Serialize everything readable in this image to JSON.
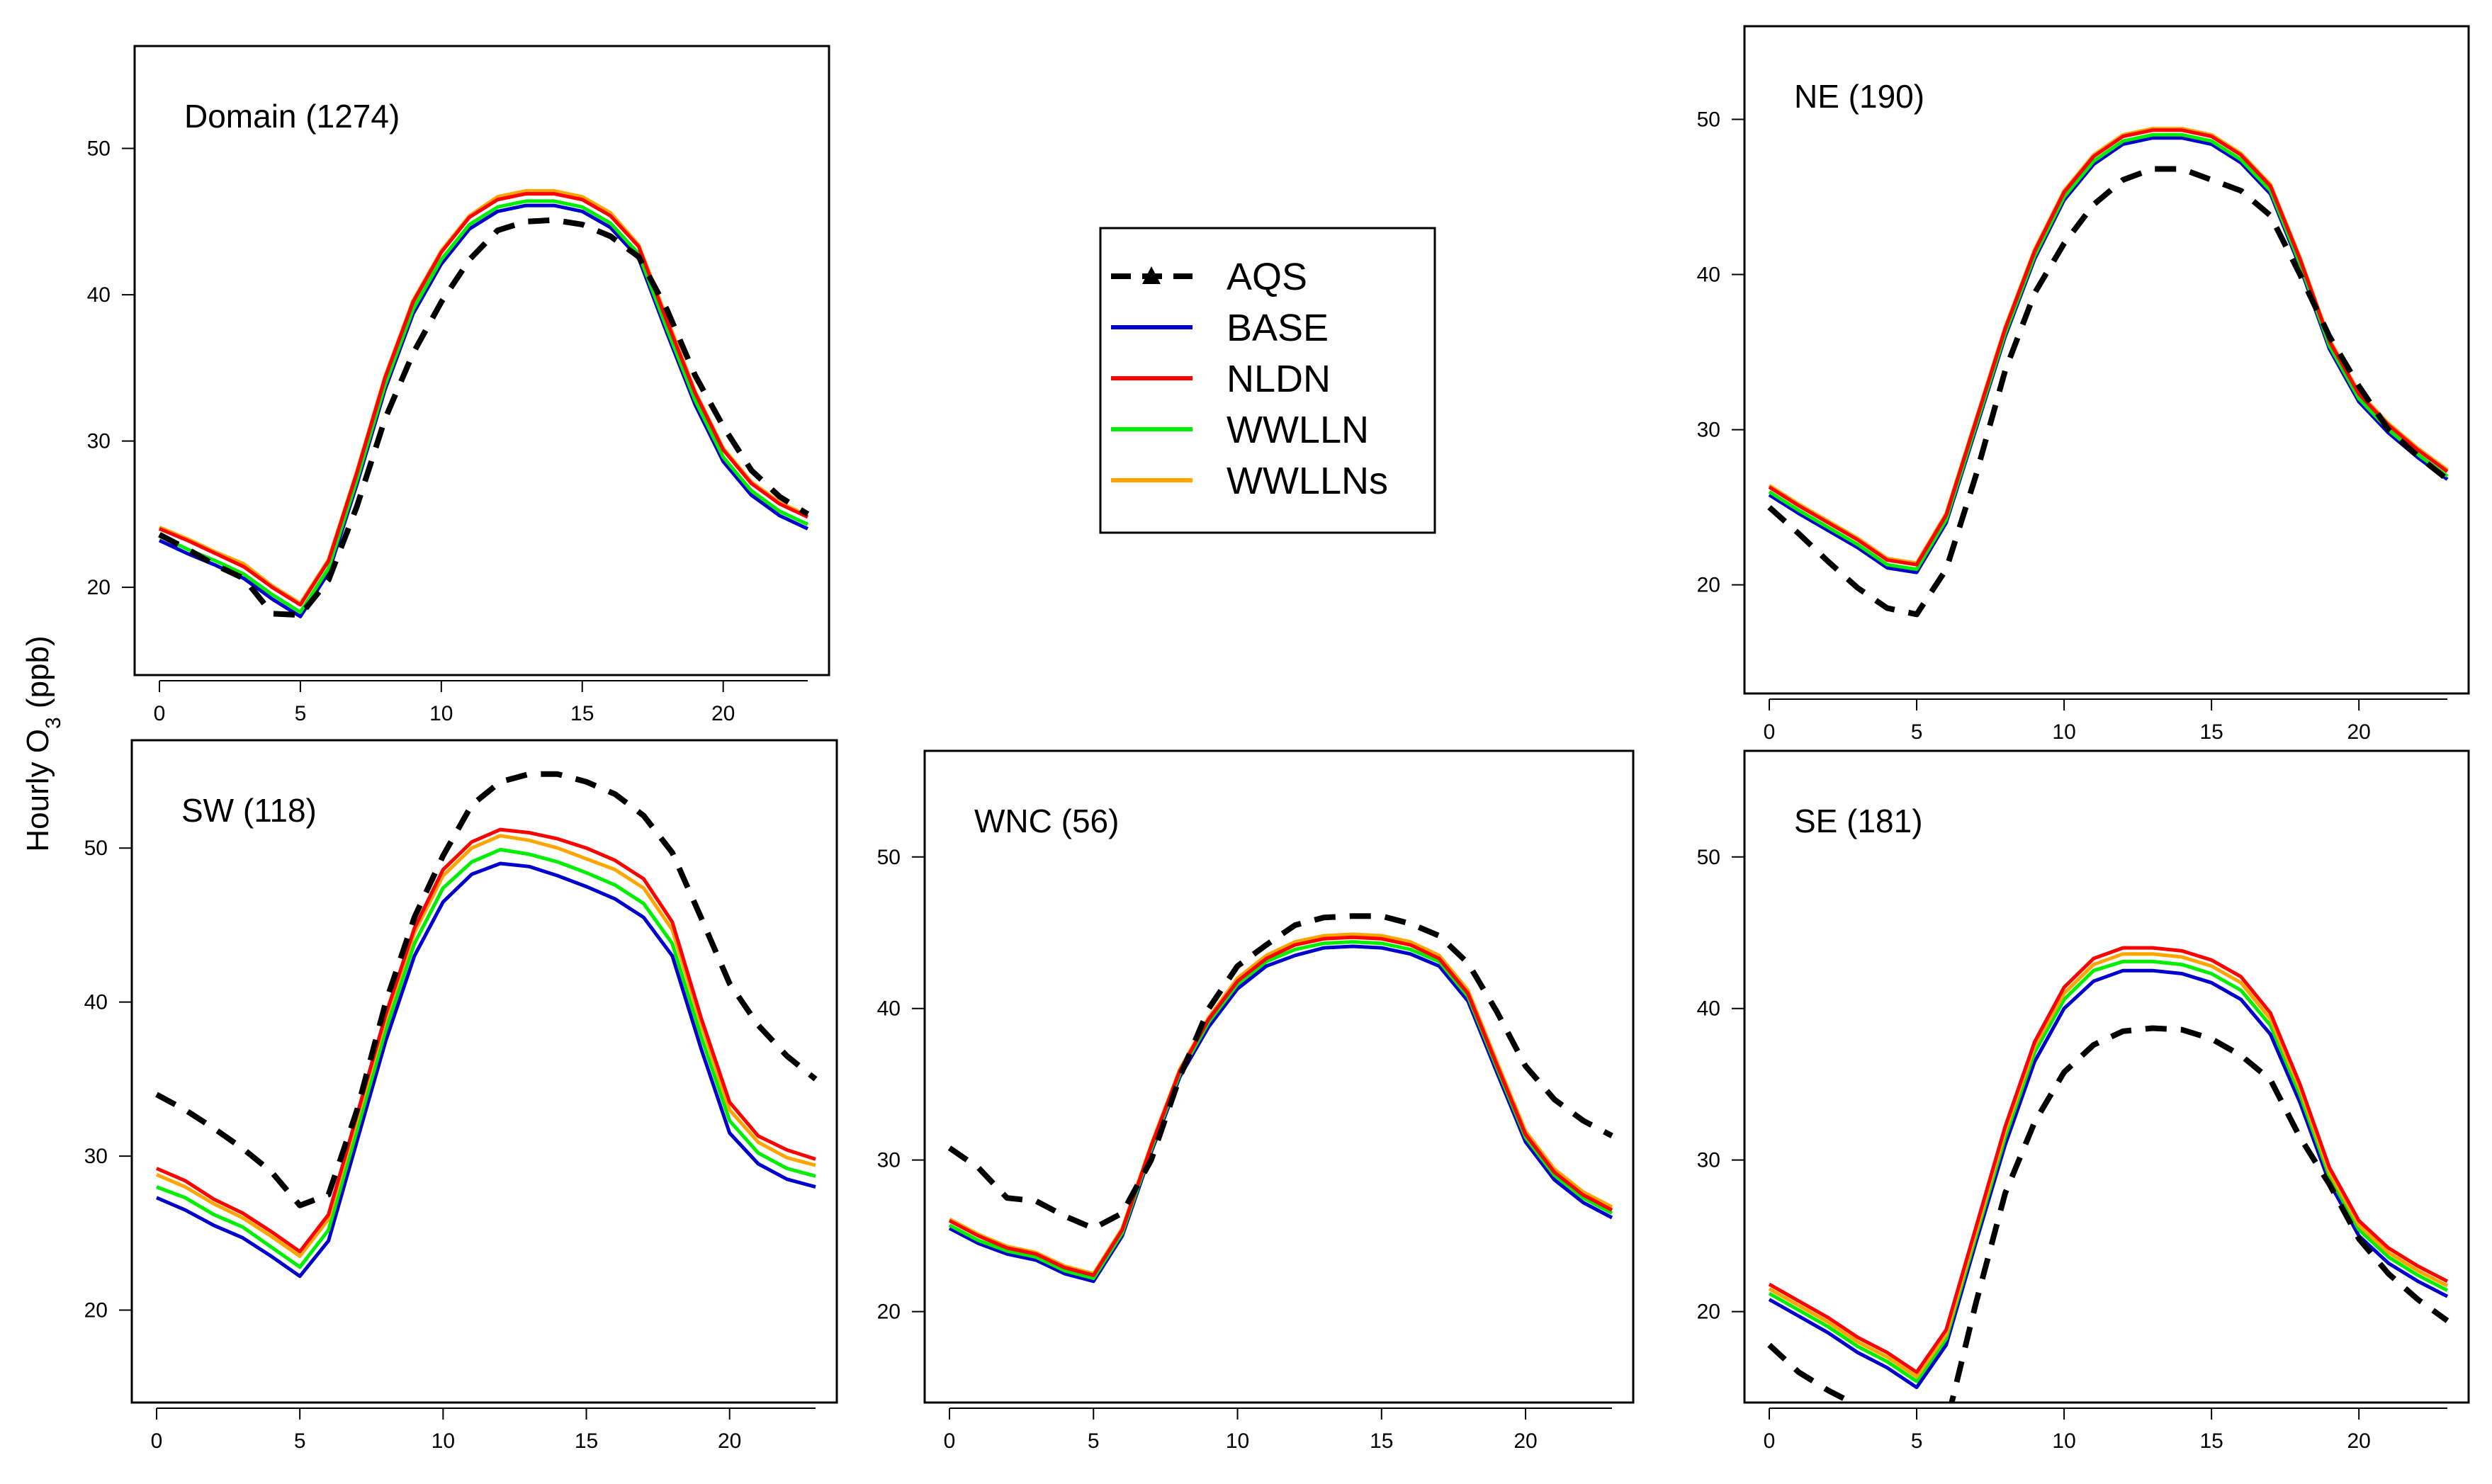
{
  "figure": {
    "ylabel_main": "Hourly O",
    "ylabel_sub": "3",
    "ylabel_unit": " (ppb)"
  },
  "legend": {
    "items": [
      {
        "label": "AQS",
        "color": "#000000",
        "style": "dashed-triangle"
      },
      {
        "label": "BASE",
        "color": "#0000cc",
        "style": "solid"
      },
      {
        "label": "NLDN",
        "color": "#ff0000",
        "style": "solid"
      },
      {
        "label": "WWLLN",
        "color": "#00ee00",
        "style": "solid"
      },
      {
        "label": "WWLLNs",
        "color": "#ffa500",
        "style": "solid"
      }
    ]
  },
  "chart_data": [
    {
      "type": "line",
      "title": "Domain (1274)",
      "xlim": [
        0,
        23
      ],
      "ylim": [
        14,
        57
      ],
      "xticks": [
        0,
        5,
        10,
        15,
        20
      ],
      "yticks": [
        20,
        30,
        40,
        50
      ],
      "x": [
        0,
        1,
        2,
        3,
        4,
        5,
        6,
        7,
        8,
        9,
        10,
        11,
        12,
        13,
        14,
        15,
        16,
        17,
        18,
        19,
        20,
        21,
        22,
        23
      ],
      "series": [
        {
          "name": "AQS",
          "color": "#000000",
          "dashed": true,
          "values": [
            23.6,
            22.6,
            21.5,
            20.6,
            18.2,
            18.1,
            20.5,
            25.5,
            31.5,
            36.0,
            39.5,
            42.4,
            44.4,
            45.0,
            45.1,
            44.8,
            44.0,
            42.6,
            39.0,
            34.5,
            31.0,
            28.0,
            26.2,
            25.0
          ]
        },
        {
          "name": "BASE",
          "color": "#0000cc",
          "values": [
            23.2,
            22.3,
            21.5,
            20.6,
            19.2,
            18.0,
            21.0,
            27.0,
            33.5,
            38.7,
            42.1,
            44.5,
            45.7,
            46.1,
            46.1,
            45.7,
            44.6,
            42.5,
            37.4,
            32.5,
            28.6,
            26.3,
            24.9,
            24.0
          ]
        },
        {
          "name": "NLDN",
          "color": "#ff0000",
          "values": [
            24.0,
            23.2,
            22.3,
            21.4,
            20.0,
            18.8,
            21.8,
            27.8,
            34.3,
            39.5,
            42.9,
            45.3,
            46.5,
            46.9,
            46.9,
            46.5,
            45.4,
            43.3,
            38.2,
            33.3,
            29.4,
            27.1,
            25.7,
            24.8
          ]
        },
        {
          "name": "WWLLN",
          "color": "#00ee00",
          "values": [
            23.5,
            22.6,
            21.8,
            20.9,
            19.5,
            18.3,
            21.3,
            27.3,
            33.8,
            39.0,
            42.4,
            44.8,
            46.0,
            46.4,
            46.4,
            46.0,
            44.9,
            42.8,
            37.7,
            32.8,
            28.9,
            26.6,
            25.2,
            24.3
          ]
        },
        {
          "name": "WWLLNs",
          "color": "#ffa500",
          "values": [
            24.1,
            23.3,
            22.4,
            21.6,
            20.1,
            18.9,
            21.9,
            27.9,
            34.4,
            39.6,
            43.0,
            45.4,
            46.7,
            47.1,
            47.1,
            46.7,
            45.6,
            43.4,
            38.4,
            33.4,
            29.5,
            27.2,
            25.8,
            24.9
          ]
        }
      ]
    },
    {
      "type": "line",
      "title": "NE (190)",
      "xlim": [
        0,
        23
      ],
      "ylim": [
        13,
        56
      ],
      "xticks": [
        0,
        5,
        10,
        15,
        20
      ],
      "yticks": [
        20,
        30,
        40,
        50
      ],
      "x": [
        0,
        1,
        2,
        3,
        4,
        5,
        6,
        7,
        8,
        9,
        10,
        11,
        12,
        13,
        14,
        15,
        16,
        17,
        18,
        19,
        20,
        21,
        22,
        23
      ],
      "series": [
        {
          "name": "AQS",
          "color": "#000000",
          "dashed": true,
          "values": [
            25.0,
            23.3,
            21.5,
            19.8,
            18.5,
            18.1,
            21.0,
            27.0,
            33.8,
            38.8,
            42.0,
            44.5,
            46.1,
            46.8,
            46.8,
            46.1,
            45.4,
            43.8,
            40.0,
            36.0,
            32.8,
            30.0,
            28.3,
            26.8
          ]
        },
        {
          "name": "BASE",
          "color": "#0000cc",
          "values": [
            25.8,
            24.6,
            23.5,
            22.4,
            21.1,
            20.8,
            24.0,
            30.0,
            36.0,
            41.0,
            44.8,
            47.1,
            48.4,
            48.8,
            48.8,
            48.4,
            47.2,
            45.2,
            40.5,
            35.2,
            31.8,
            29.8,
            28.2,
            26.8
          ]
        },
        {
          "name": "NLDN",
          "color": "#ff0000",
          "values": [
            26.3,
            25.1,
            24.0,
            22.9,
            21.6,
            21.3,
            24.5,
            30.5,
            36.5,
            41.5,
            45.3,
            47.6,
            48.9,
            49.3,
            49.3,
            48.9,
            47.7,
            45.7,
            41.0,
            35.7,
            32.3,
            30.3,
            28.7,
            27.3
          ]
        },
        {
          "name": "WWLLN",
          "color": "#00ee00",
          "values": [
            26.0,
            24.8,
            23.7,
            22.6,
            21.3,
            21.0,
            24.2,
            30.2,
            36.2,
            41.2,
            45.0,
            47.3,
            48.6,
            49.0,
            49.0,
            48.6,
            47.4,
            45.4,
            40.7,
            35.4,
            32.0,
            30.0,
            28.4,
            27.0
          ]
        },
        {
          "name": "WWLLNs",
          "color": "#ffa500",
          "values": [
            26.4,
            25.2,
            24.1,
            23.0,
            21.7,
            21.4,
            24.6,
            30.6,
            36.6,
            41.6,
            45.4,
            47.7,
            49.0,
            49.4,
            49.4,
            49.0,
            47.8,
            45.8,
            41.1,
            35.8,
            32.4,
            30.4,
            28.8,
            27.4
          ]
        }
      ]
    },
    {
      "type": "line",
      "title": "SW (118)",
      "xlim": [
        0,
        23
      ],
      "ylim": [
        14,
        57
      ],
      "xticks": [
        0,
        5,
        10,
        15,
        20
      ],
      "yticks": [
        20,
        30,
        40,
        50
      ],
      "x": [
        0,
        1,
        2,
        3,
        4,
        5,
        6,
        7,
        8,
        9,
        10,
        11,
        12,
        13,
        14,
        15,
        16,
        17,
        18,
        19,
        20,
        21,
        22,
        23
      ],
      "series": [
        {
          "name": "AQS",
          "color": "#000000",
          "dashed": true,
          "values": [
            34.0,
            33.0,
            31.8,
            30.5,
            29.0,
            26.8,
            27.5,
            33.0,
            40.0,
            45.5,
            49.5,
            52.8,
            54.3,
            54.8,
            54.8,
            54.3,
            53.5,
            52.1,
            49.7,
            45.5,
            41.2,
            38.5,
            36.5,
            35.0
          ]
        },
        {
          "name": "BASE",
          "color": "#0000cc",
          "values": [
            27.3,
            26.5,
            25.5,
            24.7,
            23.5,
            22.2,
            24.5,
            31.0,
            37.5,
            43.0,
            46.5,
            48.3,
            49.0,
            48.8,
            48.2,
            47.5,
            46.7,
            45.5,
            43.0,
            37.0,
            31.5,
            29.5,
            28.5,
            28.0
          ]
        },
        {
          "name": "NLDN",
          "color": "#ff0000",
          "values": [
            29.2,
            28.4,
            27.2,
            26.3,
            25.1,
            23.8,
            26.2,
            32.7,
            39.2,
            44.8,
            48.6,
            50.4,
            51.2,
            51.0,
            50.6,
            50.0,
            49.2,
            48.0,
            45.2,
            39.0,
            33.5,
            31.3,
            30.4,
            29.8
          ]
        },
        {
          "name": "WWLLN",
          "color": "#00ee00",
          "values": [
            28.0,
            27.3,
            26.2,
            25.4,
            24.1,
            22.8,
            25.2,
            31.7,
            38.2,
            43.8,
            47.4,
            49.1,
            49.9,
            49.6,
            49.1,
            48.4,
            47.6,
            46.4,
            43.8,
            37.8,
            32.3,
            30.2,
            29.2,
            28.7
          ]
        },
        {
          "name": "WWLLNs",
          "color": "#ffa500",
          "values": [
            28.8,
            28.0,
            26.9,
            26.0,
            24.8,
            23.5,
            25.9,
            32.4,
            38.9,
            44.5,
            48.2,
            50.0,
            50.8,
            50.5,
            50.0,
            49.3,
            48.6,
            47.4,
            44.7,
            38.6,
            33.0,
            30.9,
            29.9,
            29.4
          ]
        }
      ]
    },
    {
      "type": "line",
      "title": "WNC (56)",
      "xlim": [
        0,
        23
      ],
      "ylim": [
        14,
        57
      ],
      "xticks": [
        0,
        5,
        10,
        15,
        20
      ],
      "yticks": [
        20,
        30,
        40,
        50
      ],
      "x": [
        0,
        1,
        2,
        3,
        4,
        5,
        6,
        7,
        8,
        9,
        10,
        11,
        12,
        13,
        14,
        15,
        16,
        17,
        18,
        19,
        20,
        21,
        22,
        23
      ],
      "series": [
        {
          "name": "AQS",
          "color": "#000000",
          "dashed": true,
          "values": [
            30.8,
            29.5,
            27.5,
            27.3,
            26.3,
            25.5,
            26.5,
            30.0,
            35.5,
            40.0,
            42.8,
            44.2,
            45.5,
            46.0,
            46.1,
            46.1,
            45.6,
            44.8,
            43.0,
            39.8,
            36.2,
            34.0,
            32.6,
            31.6
          ]
        },
        {
          "name": "BASE",
          "color": "#0000cc",
          "values": [
            25.5,
            24.5,
            23.8,
            23.4,
            22.5,
            22.0,
            25.0,
            30.5,
            35.5,
            38.8,
            41.3,
            42.8,
            43.5,
            44.0,
            44.1,
            44.0,
            43.6,
            42.8,
            40.5,
            35.8,
            31.2,
            28.7,
            27.2,
            26.2
          ]
        },
        {
          "name": "NLDN",
          "color": "#ff0000",
          "values": [
            26.0,
            25.0,
            24.2,
            23.8,
            22.9,
            22.4,
            25.4,
            30.9,
            35.9,
            39.3,
            41.8,
            43.3,
            44.2,
            44.6,
            44.7,
            44.6,
            44.2,
            43.3,
            41.0,
            36.3,
            31.7,
            29.2,
            27.7,
            26.7
          ]
        },
        {
          "name": "WWLLN",
          "color": "#00ee00",
          "values": [
            25.7,
            24.7,
            24.0,
            23.6,
            22.7,
            22.2,
            25.2,
            30.7,
            35.7,
            39.1,
            41.6,
            43.1,
            43.9,
            44.3,
            44.4,
            44.3,
            43.9,
            43.1,
            40.8,
            36.1,
            31.5,
            29.0,
            27.5,
            26.5
          ]
        },
        {
          "name": "WWLLNs",
          "color": "#ffa500",
          "values": [
            26.1,
            25.1,
            24.3,
            23.9,
            23.0,
            22.5,
            25.5,
            31.0,
            36.0,
            39.4,
            42.0,
            43.5,
            44.4,
            44.8,
            44.9,
            44.8,
            44.4,
            43.5,
            41.2,
            36.5,
            31.9,
            29.4,
            27.9,
            26.9
          ]
        }
      ]
    },
    {
      "type": "line",
      "title": "SE (181)",
      "xlim": [
        0,
        23
      ],
      "ylim": [
        14,
        57
      ],
      "xticks": [
        0,
        5,
        10,
        15,
        20
      ],
      "yticks": [
        20,
        30,
        40,
        50
      ],
      "x": [
        0,
        1,
        2,
        3,
        4,
        5,
        6,
        7,
        8,
        9,
        10,
        11,
        12,
        13,
        14,
        15,
        16,
        17,
        18,
        19,
        20,
        21,
        22,
        23
      ],
      "series": [
        {
          "name": "AQS",
          "color": "#000000",
          "dashed": true,
          "values": [
            17.8,
            16.0,
            14.8,
            13.8,
            12.8,
            12.0,
            12.5,
            20.5,
            27.8,
            32.5,
            35.8,
            37.6,
            38.5,
            38.7,
            38.6,
            38.0,
            36.9,
            35.3,
            31.5,
            28.4,
            24.8,
            22.5,
            20.8,
            19.4
          ]
        },
        {
          "name": "BASE",
          "color": "#0000cc",
          "values": [
            20.8,
            19.7,
            18.6,
            17.3,
            16.3,
            15.0,
            17.8,
            24.5,
            31.0,
            36.5,
            40.0,
            41.8,
            42.5,
            42.5,
            42.3,
            41.7,
            40.6,
            38.3,
            33.8,
            28.5,
            25.0,
            23.2,
            22.0,
            21.0
          ]
        },
        {
          "name": "NLDN",
          "color": "#ff0000",
          "values": [
            21.8,
            20.7,
            19.6,
            18.3,
            17.3,
            16.0,
            18.8,
            25.5,
            32.2,
            37.8,
            41.4,
            43.3,
            44.0,
            44.0,
            43.8,
            43.2,
            42.1,
            39.7,
            35.0,
            29.5,
            26.0,
            24.2,
            23.0,
            22.0
          ]
        },
        {
          "name": "WWLLN",
          "color": "#00ee00",
          "values": [
            21.2,
            20.1,
            19.0,
            17.7,
            16.7,
            15.4,
            18.2,
            24.9,
            31.5,
            37.1,
            40.6,
            42.5,
            43.1,
            43.1,
            42.9,
            42.3,
            41.2,
            38.9,
            34.3,
            28.9,
            25.4,
            23.6,
            22.4,
            21.4
          ]
        },
        {
          "name": "WWLLNs",
          "color": "#ffa500",
          "values": [
            21.5,
            20.4,
            19.3,
            18.0,
            17.0,
            15.7,
            18.5,
            25.2,
            31.9,
            37.5,
            41.0,
            42.9,
            43.6,
            43.6,
            43.4,
            42.8,
            41.7,
            39.3,
            34.7,
            29.2,
            25.7,
            23.9,
            22.7,
            21.7
          ]
        }
      ]
    }
  ]
}
